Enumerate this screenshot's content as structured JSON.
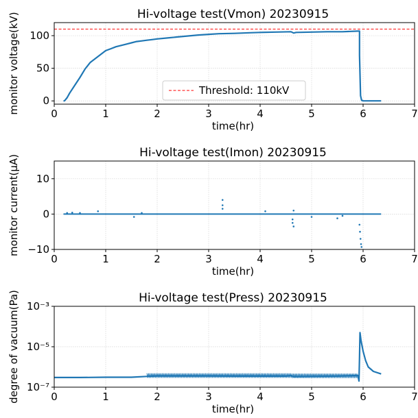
{
  "chart_data": [
    {
      "type": "line",
      "title": "Hi-voltage test(Vmon) 20230915",
      "xlabel": "time(hr)",
      "ylabel": "monitor voltage(kV)",
      "xlim": [
        0,
        7
      ],
      "ylim": [
        -5,
        120
      ],
      "xticks": [
        "0",
        "1",
        "2",
        "3",
        "4",
        "5",
        "6",
        "7"
      ],
      "yticks": [
        "0",
        "50",
        "100"
      ],
      "grid": true,
      "legend_position": "bottom-center",
      "threshold": {
        "label": "Threshold: 110kV",
        "value": 110,
        "color": "#ff3333"
      },
      "series": [
        {
          "color": "#1f77b4",
          "x": [
            0.18,
            0.2,
            0.25,
            0.3,
            0.4,
            0.5,
            0.6,
            0.7,
            0.8,
            0.9,
            1.0,
            1.1,
            1.2,
            1.3,
            1.4,
            1.5,
            1.6,
            1.7,
            1.8,
            1.9,
            2.0,
            2.2,
            2.4,
            2.6,
            2.8,
            3.0,
            3.2,
            3.5,
            3.8,
            4.0,
            4.3,
            4.6,
            4.65,
            4.7,
            5.0,
            5.3,
            5.6,
            5.9,
            5.93,
            5.93,
            5.95,
            5.97,
            6.0,
            6.2,
            6.35
          ],
          "y": [
            0,
            0,
            5,
            12,
            24,
            36,
            49,
            59,
            65,
            71,
            77,
            80,
            83,
            85,
            87,
            89,
            91,
            92,
            93,
            94,
            95,
            96.5,
            98,
            99.5,
            101,
            102,
            103,
            103.5,
            104.5,
            105,
            105.5,
            106,
            104,
            105,
            105.5,
            106,
            106,
            107,
            107,
            70,
            8,
            1,
            0,
            0,
            0
          ]
        }
      ]
    },
    {
      "type": "scatter",
      "title": "Hi-voltage test(Imon) 20230915",
      "xlabel": "time(hr)",
      "ylabel": "monitor current(μA)",
      "xlim": [
        0,
        7
      ],
      "ylim": [
        -10,
        15
      ],
      "xticks": [
        "0",
        "1",
        "2",
        "3",
        "4",
        "5",
        "6",
        "7"
      ],
      "yticks": [
        "−10",
        "0",
        "10"
      ],
      "grid": true,
      "series": [
        {
          "color": "#1f77b4",
          "baseline": {
            "x": [
              0.18,
              6.35
            ],
            "y": [
              0,
              0
            ]
          },
          "points": [
            {
              "x": 0.25,
              "y": 0.3
            },
            {
              "x": 0.35,
              "y": 0.4
            },
            {
              "x": 0.5,
              "y": 0.3
            },
            {
              "x": 0.85,
              "y": 0.8
            },
            {
              "x": 1.55,
              "y": -0.8
            },
            {
              "x": 1.7,
              "y": 0.3
            },
            {
              "x": 3.27,
              "y": 4.0
            },
            {
              "x": 3.27,
              "y": 2.5
            },
            {
              "x": 3.27,
              "y": 1.5
            },
            {
              "x": 4.1,
              "y": 0.8
            },
            {
              "x": 4.63,
              "y": -1.5
            },
            {
              "x": 4.63,
              "y": -2.5
            },
            {
              "x": 4.65,
              "y": 1.0
            },
            {
              "x": 4.65,
              "y": -3.5
            },
            {
              "x": 5.0,
              "y": -0.8
            },
            {
              "x": 5.5,
              "y": -1.2
            },
            {
              "x": 5.6,
              "y": -0.5
            },
            {
              "x": 5.93,
              "y": -3
            },
            {
              "x": 5.94,
              "y": -5
            },
            {
              "x": 5.95,
              "y": -7
            },
            {
              "x": 5.96,
              "y": -8.5
            },
            {
              "x": 5.97,
              "y": -9.3
            }
          ]
        }
      ]
    },
    {
      "type": "line",
      "title": "Hi-voltage test(Press) 20230915",
      "xlabel": "time(hr)",
      "ylabel": "degree of vacuum(Pa)",
      "xlim": [
        0,
        7
      ],
      "ylim": [
        1e-07,
        0.001
      ],
      "yscale": "log",
      "xticks": [
        "0",
        "1",
        "2",
        "3",
        "4",
        "5",
        "6",
        "7"
      ],
      "yticks": [
        "10⁻⁷",
        "10⁻⁵",
        "10⁻³"
      ],
      "grid": true,
      "series": [
        {
          "color": "#1f77b4",
          "x": [
            0,
            0.5,
            1.0,
            1.5,
            1.8,
            2.0,
            2.5,
            3.0,
            3.5,
            4.0,
            4.5,
            4.6,
            4.65,
            5.0,
            5.5,
            5.9,
            5.92,
            5.93,
            5.94,
            5.96,
            6.0,
            6.05,
            6.1,
            6.2,
            6.35
          ],
          "y": [
            3e-07,
            3e-07,
            3.1e-07,
            3.1e-07,
            3.4e-07,
            3.6e-07,
            3.6e-07,
            3.6e-07,
            3.5e-07,
            3.5e-07,
            3.5e-07,
            3.7e-07,
            3.3e-07,
            3.4e-07,
            3.5e-07,
            3.8e-07,
            2e-07,
            3e-06,
            5e-05,
            2e-05,
            6e-06,
            2e-06,
            1e-06,
            6e-07,
            4.5e-07
          ]
        }
      ]
    }
  ]
}
